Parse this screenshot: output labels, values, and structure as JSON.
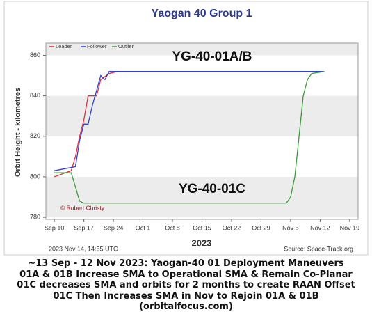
{
  "chart_data": {
    "type": "line",
    "title": "Yaogan 40 Group 1",
    "x_label": "2023",
    "y_label": "Orbit Height - kilometres",
    "annotations": [
      "YG-40-01A/B",
      "YG-40-01C"
    ],
    "credit": "© Robert Christy",
    "timestamp": "2023 Nov 14, 14:55 UTC",
    "source": "Source: Space-Track.org",
    "xlim": [
      "2023-09-08",
      "2023-11-21"
    ],
    "xticks": [
      {
        "value": "2023-09-10",
        "label": "Sep 10"
      },
      {
        "value": "2023-09-17",
        "label": "Sep 17"
      },
      {
        "value": "2023-09-24",
        "label": "Sep 24"
      },
      {
        "value": "2023-10-01",
        "label": "Oct 1"
      },
      {
        "value": "2023-10-08",
        "label": "Oct 8"
      },
      {
        "value": "2023-10-15",
        "label": "Oct 15"
      },
      {
        "value": "2023-10-22",
        "label": "Oct 22"
      },
      {
        "value": "2023-10-29",
        "label": "Oct 29"
      },
      {
        "value": "2023-11-05",
        "label": "Nov 5"
      },
      {
        "value": "2023-11-12",
        "label": "Nov 12"
      },
      {
        "value": "2023-11-19",
        "label": "Nov 19"
      }
    ],
    "ylim": [
      779,
      866
    ],
    "yticks": [
      780,
      800,
      820,
      840,
      860
    ],
    "grid": true,
    "legend": "upper left",
    "series": [
      {
        "name": "Leader",
        "color": "#e0303a",
        "x": [
          "2023-09-10",
          "2023-09-14",
          "2023-09-15",
          "2023-09-16",
          "2023-09-17",
          "2023-09-18",
          "2023-09-20",
          "2023-09-21",
          "2023-09-23",
          "2023-09-25",
          "2023-11-13"
        ],
        "values": [
          800,
          803,
          810,
          820,
          828,
          840,
          840,
          848,
          851,
          852,
          852
        ]
      },
      {
        "name": "Follower",
        "color": "#2f3fd0",
        "x": [
          "2023-09-10",
          "2023-09-15",
          "2023-09-16",
          "2023-09-17",
          "2023-09-18",
          "2023-09-19",
          "2023-09-21",
          "2023-09-22",
          "2023-09-23",
          "2023-11-13"
        ],
        "values": [
          803,
          805,
          818,
          826,
          826,
          835,
          850,
          848,
          852,
          852
        ]
      },
      {
        "name": "Outlier",
        "color": "#3a9a3a",
        "x": [
          "2023-09-10",
          "2023-09-14",
          "2023-09-15",
          "2023-09-16",
          "2023-09-17",
          "2023-11-04",
          "2023-11-05",
          "2023-11-06",
          "2023-11-07",
          "2023-11-08",
          "2023-11-09",
          "2023-11-10",
          "2023-11-13"
        ],
        "values": [
          802,
          802,
          795,
          788,
          787,
          787,
          790,
          800,
          820,
          840,
          848,
          851,
          852
        ]
      }
    ],
    "caption": [
      "~13 Sep - 12 Nov 2023:  Yaogan-40 01 Deployment Maneuvers",
      "01A & 01B Increase SMA to Operational SMA & Remain Co-Planar",
      "01C decreases SMA and orbits for 2 months to create RAAN Offset",
      "01C Then Increases SMA in Nov to Rejoin 01A & 01B",
      "(orbitalfocus.com)"
    ]
  }
}
